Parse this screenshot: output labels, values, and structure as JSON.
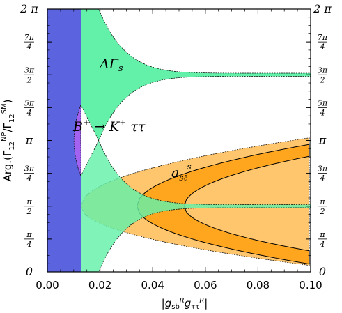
{
  "chart_data": {
    "type": "region",
    "xlabel": "|g_sb^R g_ττ^R|",
    "ylabel": "Arg.(Γ12^NP/Γ12^SM)",
    "xlim": [
      0.0,
      0.1
    ],
    "ylim_over_pi": [
      0,
      2
    ],
    "x_ticks": [
      "0.00",
      "0.02",
      "0.04",
      "0.06",
      "0.08",
      "0.10"
    ],
    "x_tick_values": [
      0.0,
      0.02,
      0.04,
      0.06,
      0.08,
      0.1
    ],
    "y_ticks": [
      {
        "value_over_pi": 0,
        "label": "0"
      },
      {
        "value_over_pi": 0.25,
        "label": "π/4"
      },
      {
        "value_over_pi": 0.5,
        "label": "π/2"
      },
      {
        "value_over_pi": 0.75,
        "label": "3π/4"
      },
      {
        "value_over_pi": 1.0,
        "label": "π"
      },
      {
        "value_over_pi": 1.25,
        "label": "5π/4"
      },
      {
        "value_over_pi": 1.5,
        "label": "3π/2"
      },
      {
        "value_over_pi": 1.75,
        "label": "7π/4"
      },
      {
        "value_over_pi": 2.0,
        "label": "2 π"
      }
    ],
    "regions": [
      {
        "name": "B⁺ → K⁺ ττ",
        "color": "#5b63de",
        "x_range": [
          0.0,
          0.0127
        ],
        "y_range_over_pi": [
          0,
          2
        ]
      },
      {
        "name": "ΔΓs",
        "color": "#63f0a8",
        "x_boundary_approx": 0.0127,
        "center_over_pi": [
          0.5,
          1.5
        ]
      },
      {
        "name": "a_sℓ^s",
        "color": "#ffc66e",
        "outer_band_over_pi": [
          0.05,
          1.02
        ]
      },
      {
        "name": "a_sℓ^s",
        "color": "#ffa61e",
        "inner_band_over_pi": [
          0.06,
          0.96
        ],
        "x_vertex": 0.034
      }
    ],
    "annotations": {
      "delta_gamma": "ΔΓs",
      "b_decay": "B⁺ → K⁺ ττ",
      "asl": "a_sℓ^s"
    },
    "colors": {
      "blue": "#5b63de",
      "green": "#63f0a8",
      "light_orange": "#ffc66e",
      "orange": "#ffa61e",
      "purple": "#a362f0"
    }
  }
}
